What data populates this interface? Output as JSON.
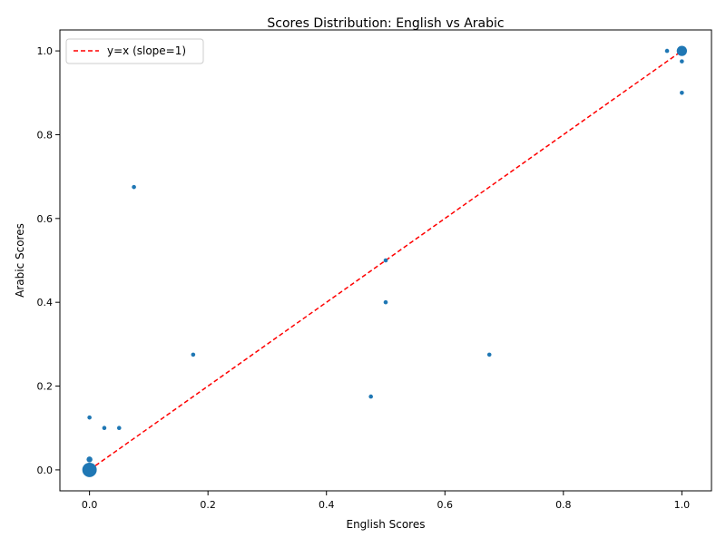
{
  "chart_data": {
    "type": "scatter",
    "title": "Scores Distribution: English vs Arabic",
    "xlabel": "English Scores",
    "ylabel": "Arabic Scores",
    "xlim": [
      -0.05,
      1.05
    ],
    "ylim": [
      -0.05,
      1.05
    ],
    "xticks": [
      0.0,
      0.2,
      0.4,
      0.6,
      0.8,
      1.0
    ],
    "yticks": [
      0.0,
      0.2,
      0.4,
      0.6,
      0.8,
      1.0
    ],
    "xtick_labels": [
      "0.0",
      "0.2",
      "0.4",
      "0.6",
      "0.8",
      "1.0"
    ],
    "ytick_labels": [
      "0.0",
      "0.2",
      "0.4",
      "0.6",
      "0.8",
      "1.0"
    ],
    "grid": false,
    "legend": {
      "placement": "top-left",
      "entries": [
        {
          "label": "y=x (slope=1)",
          "color": "#e41a1c",
          "style": "dashed"
        }
      ]
    },
    "points_color": "#1f77b4",
    "line_color": "#ff0000",
    "points": [
      {
        "x": 0.0,
        "y": 0.0,
        "count": 12
      },
      {
        "x": 0.0,
        "y": 0.025,
        "count": 2
      },
      {
        "x": 0.0,
        "y": 0.125,
        "count": 1
      },
      {
        "x": 0.025,
        "y": 0.1,
        "count": 1
      },
      {
        "x": 0.05,
        "y": 0.1,
        "count": 1
      },
      {
        "x": 0.075,
        "y": 0.675,
        "count": 1
      },
      {
        "x": 0.175,
        "y": 0.275,
        "count": 1
      },
      {
        "x": 0.475,
        "y": 0.175,
        "count": 1
      },
      {
        "x": 0.5,
        "y": 0.4,
        "count": 1
      },
      {
        "x": 0.5,
        "y": 0.5,
        "count": 1
      },
      {
        "x": 0.675,
        "y": 0.275,
        "count": 1
      },
      {
        "x": 0.975,
        "y": 1.0,
        "count": 1
      },
      {
        "x": 1.0,
        "y": 1.0,
        "count": 6
      },
      {
        "x": 1.0,
        "y": 0.975,
        "count": 1
      },
      {
        "x": 1.0,
        "y": 0.9,
        "count": 1
      }
    ],
    "reference_line": {
      "label": "y=x (slope=1)",
      "x": [
        0,
        1
      ],
      "y": [
        0,
        1
      ]
    }
  }
}
